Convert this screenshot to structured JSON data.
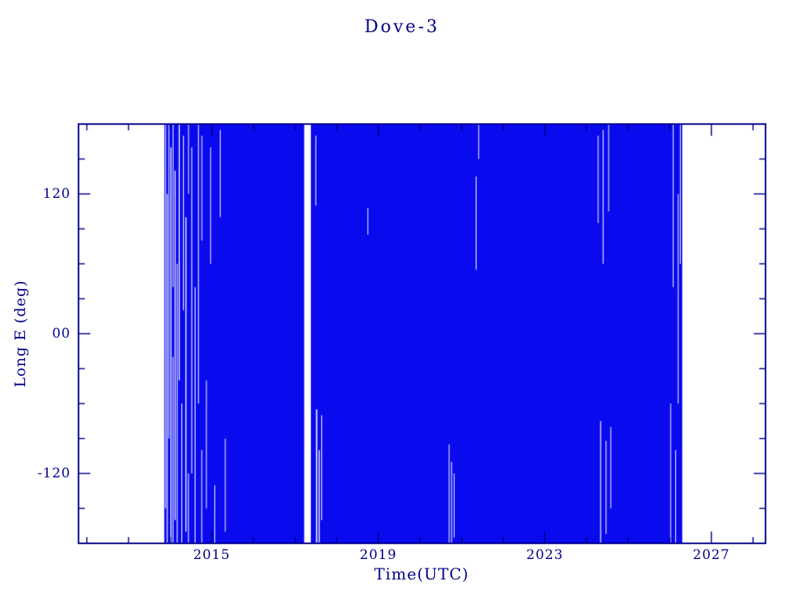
{
  "chart_data": {
    "type": "scatter",
    "title": "Dove-3",
    "xlabel": "Time(UTC)",
    "ylabel": "Long E (deg)",
    "xlim": [
      2011.8,
      2028.3
    ],
    "ylim": [
      -180,
      180
    ],
    "x_ticks": [
      {
        "value": 2015,
        "label": "2015"
      },
      {
        "value": 2019,
        "label": "2019"
      },
      {
        "value": 2023,
        "label": "2023"
      },
      {
        "value": 2027,
        "label": "2027"
      }
    ],
    "y_ticks": [
      {
        "value": -120,
        "label": "-120"
      },
      {
        "value": 0,
        "label": "00"
      },
      {
        "value": 120,
        "label": "120"
      }
    ],
    "x_minor_step": 1,
    "y_minor_step": 30,
    "grid": false,
    "legend": "none",
    "series_color": "#0a0aee",
    "frame_color": "#00008b",
    "background_color": "#ffffff",
    "band": {
      "x_start": 2013.86,
      "x_end": 2026.3
    },
    "gaps": [
      [
        2013.89,
        0.02,
        -150,
        180
      ],
      [
        2013.93,
        0.022,
        -180,
        120
      ],
      [
        2013.97,
        0.02,
        -90,
        180
      ],
      [
        2014.02,
        0.025,
        -180,
        160
      ],
      [
        2014.07,
        0.02,
        -180,
        -20
      ],
      [
        2014.07,
        0.018,
        40,
        180
      ],
      [
        2014.12,
        0.025,
        -160,
        140
      ],
      [
        2014.17,
        0.02,
        -180,
        60
      ],
      [
        2014.22,
        0.025,
        -40,
        180
      ],
      [
        2014.28,
        0.02,
        -180,
        -60
      ],
      [
        2014.32,
        0.02,
        20,
        170
      ],
      [
        2014.38,
        0.025,
        -170,
        100
      ],
      [
        2014.44,
        0.02,
        -180,
        -120
      ],
      [
        2014.44,
        0.015,
        120,
        180
      ],
      [
        2014.52,
        0.02,
        -120,
        160
      ],
      [
        2014.6,
        0.02,
        -180,
        40
      ],
      [
        2014.68,
        0.02,
        -60,
        180
      ],
      [
        2014.76,
        0.018,
        -180,
        -100
      ],
      [
        2014.76,
        0.014,
        80,
        170
      ],
      [
        2014.87,
        0.016,
        -150,
        -40
      ],
      [
        2014.97,
        0.014,
        60,
        160
      ],
      [
        2015.07,
        0.014,
        -180,
        -130
      ],
      [
        2015.2,
        0.012,
        100,
        175
      ],
      [
        2015.32,
        0.01,
        -170,
        -90
      ],
      [
        2017.3,
        0.16,
        -180,
        180
      ],
      [
        2017.5,
        0.02,
        110,
        170
      ],
      [
        2017.52,
        0.03,
        -180,
        -65
      ],
      [
        2017.58,
        0.025,
        -180,
        -100
      ],
      [
        2017.64,
        0.02,
        -160,
        -70
      ],
      [
        2018.75,
        0.018,
        85,
        108
      ],
      [
        2020.7,
        0.018,
        -180,
        -95
      ],
      [
        2020.76,
        0.02,
        -180,
        -110
      ],
      [
        2020.82,
        0.015,
        -175,
        -120
      ],
      [
        2021.35,
        0.02,
        55,
        135
      ],
      [
        2021.41,
        0.015,
        150,
        180
      ],
      [
        2024.28,
        0.018,
        95,
        170
      ],
      [
        2024.34,
        0.022,
        -180,
        -75
      ],
      [
        2024.4,
        0.02,
        60,
        175
      ],
      [
        2024.47,
        0.02,
        -172,
        -92
      ],
      [
        2024.53,
        0.015,
        105,
        180
      ],
      [
        2024.58,
        0.012,
        -150,
        -80
      ],
      [
        2026.02,
        0.016,
        -180,
        -60
      ],
      [
        2026.08,
        0.016,
        40,
        180
      ],
      [
        2026.14,
        0.016,
        -180,
        -100
      ],
      [
        2026.2,
        0.014,
        -60,
        120
      ],
      [
        2026.25,
        0.012,
        60,
        180
      ]
    ]
  }
}
